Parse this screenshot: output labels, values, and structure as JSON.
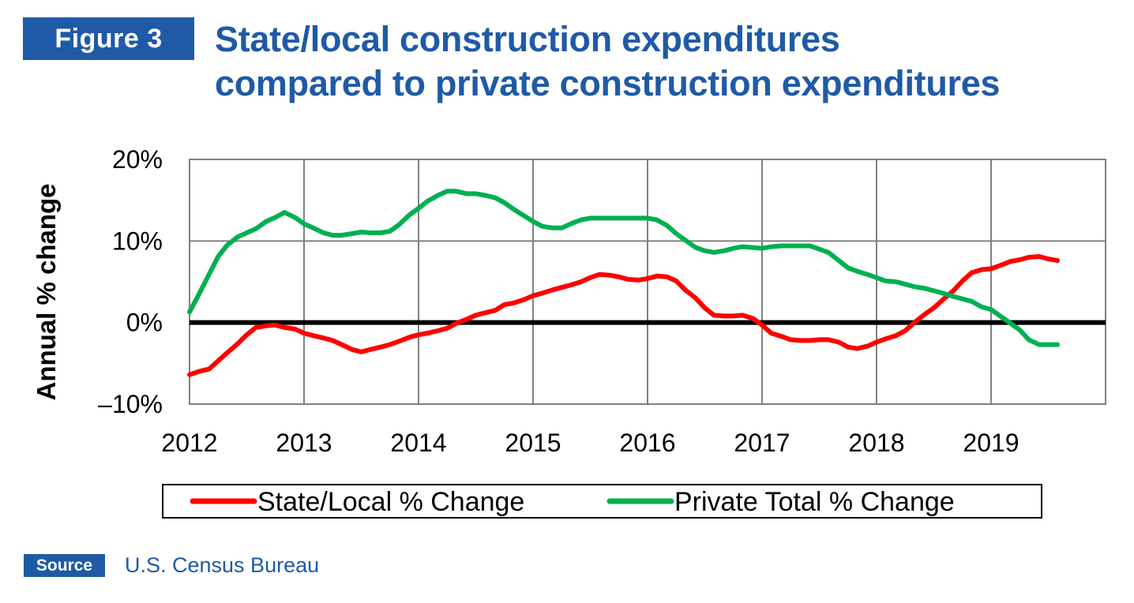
{
  "figure_label": "Figure 3",
  "title_line1": "State/local construction expenditures",
  "title_line2": "compared to private construction expenditures",
  "source": {
    "label": "Source",
    "text": "U.S. Census Bureau"
  },
  "colors": {
    "brand_blue": "#1f5aa6",
    "state_local": "#ff0000",
    "private_total": "#00b050",
    "zero_line": "#000000",
    "grid": "#808080"
  },
  "chart_data": {
    "type": "line",
    "title": "",
    "xlabel": "",
    "ylabel": "Annual % change",
    "xlim": [
      2012,
      2020
    ],
    "ylim": [
      -10,
      20
    ],
    "x_ticks": [
      {
        "value": 2012,
        "label": "2012"
      },
      {
        "value": 2013,
        "label": "2013"
      },
      {
        "value": 2014,
        "label": "2014"
      },
      {
        "value": 2015,
        "label": "2015"
      },
      {
        "value": 2016,
        "label": "2016"
      },
      {
        "value": 2017,
        "label": "2017"
      },
      {
        "value": 2018,
        "label": "2018"
      },
      {
        "value": 2019,
        "label": "2019"
      }
    ],
    "y_ticks": [
      {
        "value": 20,
        "label": "20%"
      },
      {
        "value": 10,
        "label": "10%"
      },
      {
        "value": 0,
        "label": "0%"
      },
      {
        "value": -10,
        "label": "–10%"
      }
    ],
    "grid": true,
    "zero_line": true,
    "legend_position": "bottom",
    "series": [
      {
        "name": "State/Local % Change",
        "color": "#ff0000",
        "x": [
          2012.0,
          2012.08,
          2012.17,
          2012.25,
          2012.33,
          2012.42,
          2012.5,
          2012.58,
          2012.67,
          2012.75,
          2012.83,
          2012.92,
          2013.0,
          2013.08,
          2013.17,
          2013.25,
          2013.33,
          2013.42,
          2013.5,
          2013.58,
          2013.67,
          2013.75,
          2013.83,
          2013.92,
          2014.0,
          2014.08,
          2014.17,
          2014.25,
          2014.33,
          2014.42,
          2014.5,
          2014.58,
          2014.67,
          2014.75,
          2014.83,
          2014.92,
          2015.0,
          2015.08,
          2015.17,
          2015.25,
          2015.33,
          2015.42,
          2015.5,
          2015.58,
          2015.67,
          2015.75,
          2015.83,
          2015.92,
          2016.0,
          2016.08,
          2016.17,
          2016.25,
          2016.33,
          2016.42,
          2016.5,
          2016.58,
          2016.67,
          2016.75,
          2016.83,
          2016.92,
          2017.0,
          2017.08,
          2017.17,
          2017.25,
          2017.33,
          2017.42,
          2017.5,
          2017.58,
          2017.67,
          2017.75,
          2017.83,
          2017.92,
          2018.0,
          2018.08,
          2018.17,
          2018.25,
          2018.33,
          2018.42,
          2018.5,
          2018.58,
          2018.67,
          2018.75,
          2018.83,
          2018.92,
          2019.0,
          2019.08,
          2019.17,
          2019.25,
          2019.33,
          2019.42,
          2019.5,
          2019.58
        ],
        "values": [
          -6.4,
          -6.0,
          -5.7,
          -4.7,
          -3.7,
          -2.6,
          -1.5,
          -0.6,
          -0.4,
          -0.3,
          -0.6,
          -0.8,
          -1.3,
          -1.6,
          -1.9,
          -2.2,
          -2.7,
          -3.3,
          -3.6,
          -3.3,
          -3.0,
          -2.7,
          -2.3,
          -1.8,
          -1.5,
          -1.3,
          -1.0,
          -0.7,
          -0.1,
          0.4,
          0.9,
          1.2,
          1.5,
          2.2,
          2.4,
          2.8,
          3.3,
          3.6,
          4.0,
          4.3,
          4.6,
          5.0,
          5.5,
          5.9,
          5.8,
          5.6,
          5.3,
          5.2,
          5.4,
          5.7,
          5.6,
          5.1,
          4.0,
          3.0,
          1.8,
          0.9,
          0.8,
          0.8,
          0.9,
          0.5,
          -0.3,
          -1.3,
          -1.7,
          -2.1,
          -2.2,
          -2.2,
          -2.1,
          -2.1,
          -2.4,
          -3.0,
          -3.2,
          -2.9,
          -2.4,
          -2.0,
          -1.6,
          -1.0,
          0.0,
          1.0,
          1.8,
          2.8,
          3.9,
          5.1,
          6.1,
          6.5,
          6.6,
          7.0,
          7.5,
          7.7,
          8.0,
          8.1,
          7.8,
          7.6
        ]
      },
      {
        "name": "Private Total % Change",
        "color": "#00b050",
        "x": [
          2012.0,
          2012.08,
          2012.17,
          2012.25,
          2012.33,
          2012.42,
          2012.5,
          2012.58,
          2012.67,
          2012.75,
          2012.83,
          2012.92,
          2013.0,
          2013.08,
          2013.17,
          2013.25,
          2013.33,
          2013.42,
          2013.5,
          2013.58,
          2013.67,
          2013.75,
          2013.83,
          2013.92,
          2014.0,
          2014.08,
          2014.17,
          2014.25,
          2014.33,
          2014.42,
          2014.5,
          2014.58,
          2014.67,
          2014.75,
          2014.83,
          2014.92,
          2015.0,
          2015.08,
          2015.17,
          2015.25,
          2015.33,
          2015.42,
          2015.5,
          2015.58,
          2015.67,
          2015.75,
          2015.83,
          2015.92,
          2016.0,
          2016.08,
          2016.17,
          2016.25,
          2016.33,
          2016.42,
          2016.5,
          2016.58,
          2016.67,
          2016.75,
          2016.83,
          2016.92,
          2017.0,
          2017.08,
          2017.17,
          2017.25,
          2017.33,
          2017.42,
          2017.5,
          2017.58,
          2017.67,
          2017.75,
          2017.83,
          2017.92,
          2018.0,
          2018.08,
          2018.17,
          2018.25,
          2018.33,
          2018.42,
          2018.5,
          2018.58,
          2018.67,
          2018.75,
          2018.83,
          2018.92,
          2019.0,
          2019.08,
          2019.17,
          2019.25,
          2019.33,
          2019.42,
          2019.5,
          2019.58
        ],
        "values": [
          1.3,
          3.4,
          5.9,
          8.1,
          9.5,
          10.5,
          11.0,
          11.5,
          12.4,
          12.9,
          13.5,
          12.9,
          12.1,
          11.6,
          11.0,
          10.7,
          10.7,
          10.9,
          11.1,
          11.0,
          11.0,
          11.2,
          12.0,
          13.2,
          14.0,
          14.9,
          15.6,
          16.1,
          16.1,
          15.8,
          15.8,
          15.6,
          15.3,
          14.7,
          13.9,
          13.1,
          12.4,
          11.8,
          11.6,
          11.6,
          12.1,
          12.6,
          12.8,
          12.8,
          12.8,
          12.8,
          12.8,
          12.8,
          12.8,
          12.6,
          11.9,
          10.9,
          10.1,
          9.2,
          8.8,
          8.6,
          8.8,
          9.1,
          9.3,
          9.2,
          9.1,
          9.3,
          9.4,
          9.4,
          9.4,
          9.4,
          9.0,
          8.6,
          7.6,
          6.7,
          6.3,
          5.9,
          5.5,
          5.1,
          5.0,
          4.7,
          4.4,
          4.2,
          3.9,
          3.6,
          3.2,
          2.9,
          2.6,
          1.9,
          1.6,
          0.8,
          -0.1,
          -0.9,
          -2.1,
          -2.7,
          -2.7,
          -2.7
        ]
      }
    ]
  }
}
